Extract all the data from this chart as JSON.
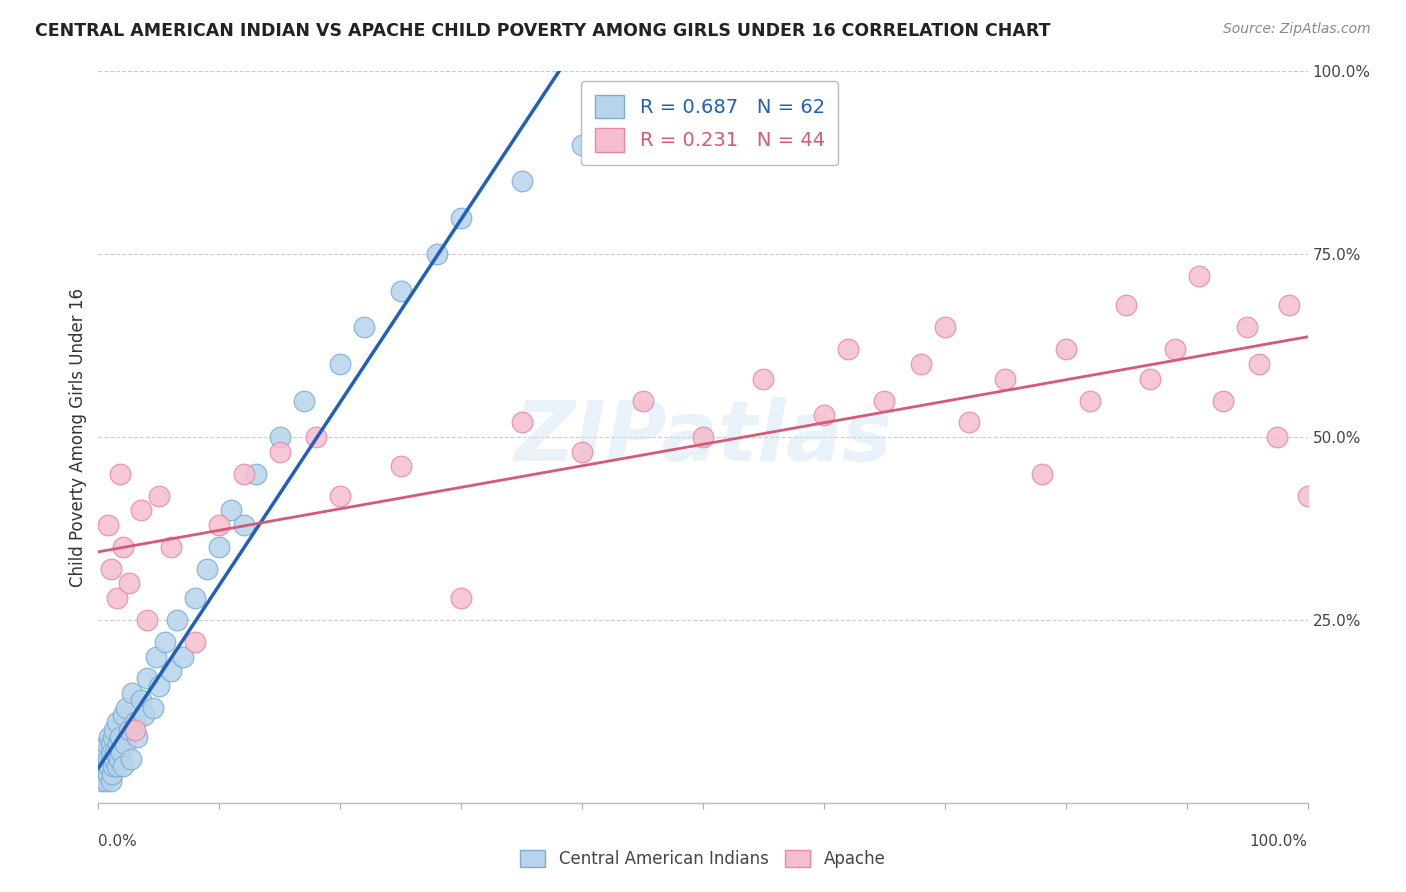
{
  "title": "CENTRAL AMERICAN INDIAN VS APACHE CHILD POVERTY AMONG GIRLS UNDER 16 CORRELATION CHART",
  "source": "Source: ZipAtlas.com",
  "ylabel": "Child Poverty Among Girls Under 16",
  "blue_R": "0.687",
  "blue_N": "62",
  "pink_R": "0.231",
  "pink_N": "44",
  "blue_label": "Central American Indians",
  "pink_label": "Apache",
  "blue_color": "#b8d4ea",
  "blue_edge": "#7aadd4",
  "pink_color": "#f5bece",
  "pink_edge": "#e888a8",
  "blue_line_color": "#2060b8",
  "pink_line_color": "#d85878",
  "xlim": [
    0,
    1
  ],
  "ylim": [
    0,
    1
  ],
  "blue_x": [
    0.003,
    0.004,
    0.005,
    0.005,
    0.006,
    0.006,
    0.007,
    0.007,
    0.008,
    0.008,
    0.009,
    0.009,
    0.01,
    0.01,
    0.01,
    0.011,
    0.011,
    0.012,
    0.012,
    0.013,
    0.013,
    0.014,
    0.015,
    0.015,
    0.016,
    0.017,
    0.018,
    0.019,
    0.02,
    0.02,
    0.022,
    0.023,
    0.025,
    0.027,
    0.028,
    0.03,
    0.032,
    0.035,
    0.038,
    0.04,
    0.045,
    0.048,
    0.05,
    0.055,
    0.06,
    0.065,
    0.07,
    0.08,
    0.09,
    0.1,
    0.11,
    0.12,
    0.13,
    0.15,
    0.17,
    0.2,
    0.22,
    0.25,
    0.28,
    0.3,
    0.35,
    0.4
  ],
  "blue_y": [
    0.03,
    0.05,
    0.04,
    0.06,
    0.03,
    0.07,
    0.05,
    0.08,
    0.04,
    0.06,
    0.05,
    0.09,
    0.03,
    0.06,
    0.08,
    0.04,
    0.07,
    0.05,
    0.09,
    0.06,
    0.1,
    0.07,
    0.05,
    0.11,
    0.08,
    0.06,
    0.09,
    0.07,
    0.05,
    0.12,
    0.08,
    0.13,
    0.1,
    0.06,
    0.15,
    0.11,
    0.09,
    0.14,
    0.12,
    0.17,
    0.13,
    0.2,
    0.16,
    0.22,
    0.18,
    0.25,
    0.2,
    0.28,
    0.32,
    0.35,
    0.4,
    0.38,
    0.45,
    0.5,
    0.55,
    0.6,
    0.65,
    0.7,
    0.75,
    0.8,
    0.85,
    0.9
  ],
  "pink_x": [
    0.008,
    0.01,
    0.015,
    0.018,
    0.02,
    0.025,
    0.03,
    0.035,
    0.04,
    0.05,
    0.06,
    0.08,
    0.1,
    0.12,
    0.15,
    0.18,
    0.2,
    0.25,
    0.3,
    0.35,
    0.4,
    0.45,
    0.5,
    0.55,
    0.6,
    0.62,
    0.65,
    0.68,
    0.7,
    0.72,
    0.75,
    0.78,
    0.8,
    0.82,
    0.85,
    0.87,
    0.89,
    0.91,
    0.93,
    0.95,
    0.96,
    0.975,
    0.985,
    1.0
  ],
  "pink_y": [
    0.38,
    0.32,
    0.28,
    0.45,
    0.35,
    0.3,
    0.1,
    0.4,
    0.25,
    0.42,
    0.35,
    0.22,
    0.38,
    0.45,
    0.48,
    0.5,
    0.42,
    0.46,
    0.28,
    0.52,
    0.48,
    0.55,
    0.5,
    0.58,
    0.53,
    0.62,
    0.55,
    0.6,
    0.65,
    0.52,
    0.58,
    0.45,
    0.62,
    0.55,
    0.68,
    0.58,
    0.62,
    0.72,
    0.55,
    0.65,
    0.6,
    0.5,
    0.68,
    0.42
  ],
  "blue_line_start_x": 0.0,
  "blue_line_end_x": 0.4,
  "pink_line_start_x": 0.0,
  "pink_line_end_x": 1.0
}
